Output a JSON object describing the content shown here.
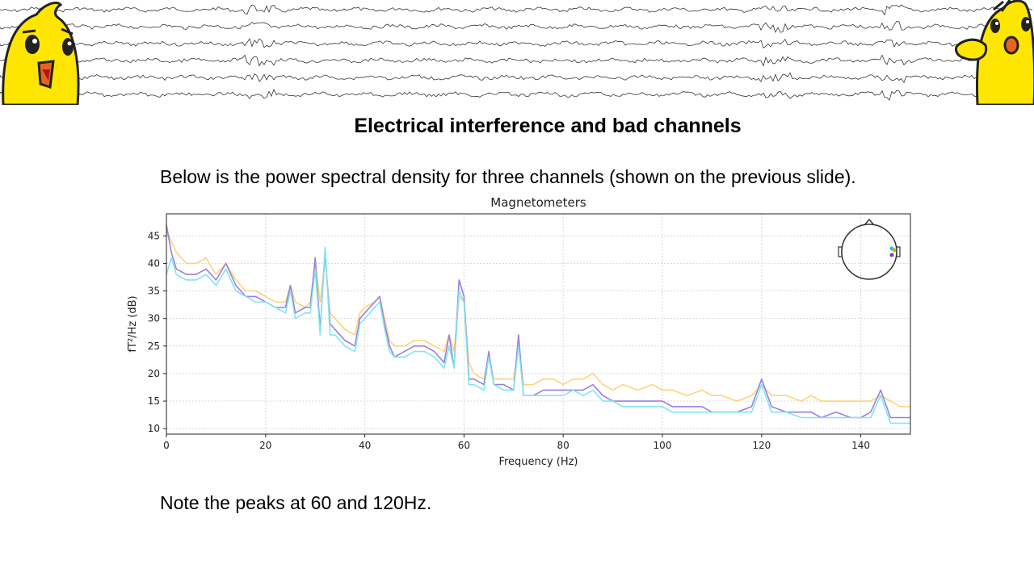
{
  "slide": {
    "title": "Electrical interference and bad channels",
    "intro": "Below is the power spectral density for three channels (shown on the previous slide).",
    "note": "Note the peaks at 60 and 120Hz."
  },
  "banner": {
    "description_icons": [
      "eeg-trace-icon",
      "chick-mascot-icon"
    ],
    "trace_color": "#333333",
    "mascot_color": "#ffe600"
  },
  "chart_data": {
    "type": "line",
    "title": "Magnetometers",
    "xlabel": "Frequency (Hz)",
    "ylabel": "fT²/Hz (dB)",
    "xlim": [
      0,
      150
    ],
    "ylim": [
      9,
      49
    ],
    "xticks": [
      0,
      20,
      40,
      60,
      80,
      100,
      120,
      140
    ],
    "yticks": [
      10,
      15,
      20,
      25,
      30,
      35,
      40,
      45
    ],
    "grid": true,
    "inset": "sensor-head-map top-right",
    "series": [
      {
        "color": "#ffd27a",
        "x": [
          0,
          1,
          2,
          4,
          6,
          8,
          10,
          12,
          14,
          16,
          18,
          20,
          22,
          24,
          25,
          26,
          28,
          29,
          30,
          31,
          32,
          33,
          34,
          36,
          38,
          39,
          40,
          42,
          43,
          44,
          45,
          46,
          48,
          50,
          52,
          54,
          56,
          57,
          58,
          59,
          60,
          61,
          62,
          64,
          65,
          66,
          68,
          70,
          71,
          72,
          74,
          76,
          78,
          80,
          82,
          84,
          86,
          88,
          90,
          92,
          95,
          98,
          100,
          102,
          105,
          108,
          110,
          112,
          115,
          118,
          120,
          122,
          125,
          128,
          130,
          132,
          135,
          138,
          140,
          142,
          144,
          146,
          148,
          150
        ],
        "y": [
          46,
          44,
          42,
          40,
          40,
          41,
          38,
          40,
          37,
          35,
          35,
          34,
          33,
          33,
          36,
          33,
          32,
          33,
          40,
          33,
          41,
          31,
          30,
          28,
          27,
          31,
          32,
          33,
          34,
          30,
          26,
          25,
          25,
          26,
          26,
          25,
          24,
          27,
          24,
          34,
          33,
          22,
          20,
          19,
          23,
          19,
          19,
          19,
          25,
          18,
          18,
          19,
          19,
          18,
          19,
          19,
          20,
          18,
          17,
          18,
          17,
          18,
          17,
          17,
          16,
          17,
          16,
          16,
          15,
          16,
          18,
          16,
          16,
          15,
          16,
          15,
          15,
          15,
          15,
          15,
          16,
          15,
          14,
          14
        ]
      },
      {
        "color": "#9a7fe0",
        "x": [
          0,
          1,
          2,
          4,
          6,
          8,
          10,
          12,
          14,
          16,
          18,
          20,
          22,
          24,
          25,
          26,
          28,
          29,
          30,
          31,
          32,
          33,
          34,
          36,
          38,
          39,
          40,
          42,
          43,
          44,
          45,
          46,
          48,
          50,
          52,
          54,
          56,
          57,
          58,
          59,
          60,
          61,
          62,
          64,
          65,
          66,
          68,
          70,
          71,
          72,
          74,
          76,
          78,
          80,
          82,
          84,
          86,
          88,
          90,
          92,
          95,
          98,
          100,
          102,
          105,
          108,
          110,
          112,
          115,
          118,
          120,
          122,
          125,
          128,
          130,
          132,
          135,
          138,
          140,
          142,
          144,
          146,
          148,
          150
        ],
        "y": [
          47,
          42,
          39,
          38,
          38,
          39,
          37,
          40,
          36,
          34,
          34,
          33,
          32,
          32,
          36,
          31,
          32,
          32,
          41,
          28,
          42,
          29,
          28,
          26,
          25,
          30,
          31,
          33,
          34,
          29,
          25,
          23,
          24,
          25,
          25,
          24,
          22,
          27,
          21,
          37,
          34,
          19,
          19,
          18,
          24,
          18,
          18,
          17,
          27,
          16,
          16,
          17,
          17,
          17,
          17,
          17,
          18,
          16,
          15,
          15,
          15,
          15,
          15,
          14,
          14,
          14,
          13,
          13,
          13,
          14,
          19,
          14,
          13,
          13,
          13,
          12,
          13,
          12,
          12,
          13,
          17,
          12,
          12,
          12
        ]
      },
      {
        "color": "#7fe6f0",
        "x": [
          0,
          1,
          2,
          4,
          6,
          8,
          10,
          12,
          14,
          16,
          18,
          20,
          22,
          24,
          25,
          26,
          28,
          29,
          30,
          31,
          32,
          33,
          34,
          36,
          38,
          39,
          40,
          42,
          43,
          44,
          45,
          46,
          48,
          50,
          52,
          54,
          56,
          57,
          58,
          59,
          60,
          61,
          62,
          64,
          65,
          66,
          68,
          70,
          71,
          72,
          74,
          76,
          78,
          80,
          82,
          84,
          86,
          88,
          90,
          92,
          95,
          98,
          100,
          102,
          105,
          108,
          110,
          112,
          115,
          118,
          120,
          122,
          125,
          128,
          130,
          132,
          135,
          138,
          140,
          142,
          144,
          146,
          148,
          150
        ],
        "y": [
          38,
          41,
          38,
          37,
          37,
          38,
          36,
          39,
          35,
          34,
          33,
          33,
          32,
          31,
          35,
          30,
          31,
          31,
          39,
          27,
          43,
          27,
          27,
          25,
          24,
          29,
          30,
          32,
          33,
          28,
          24,
          23,
          23,
          24,
          24,
          23,
          21,
          25,
          21,
          35,
          33,
          18,
          18,
          17,
          23,
          18,
          17,
          17,
          25,
          16,
          16,
          16,
          16,
          16,
          17,
          16,
          17,
          15,
          15,
          14,
          14,
          14,
          14,
          13,
          13,
          13,
          13,
          13,
          13,
          13,
          18,
          13,
          13,
          12,
          12,
          12,
          12,
          12,
          12,
          12,
          16,
          11,
          11,
          11
        ]
      }
    ]
  }
}
